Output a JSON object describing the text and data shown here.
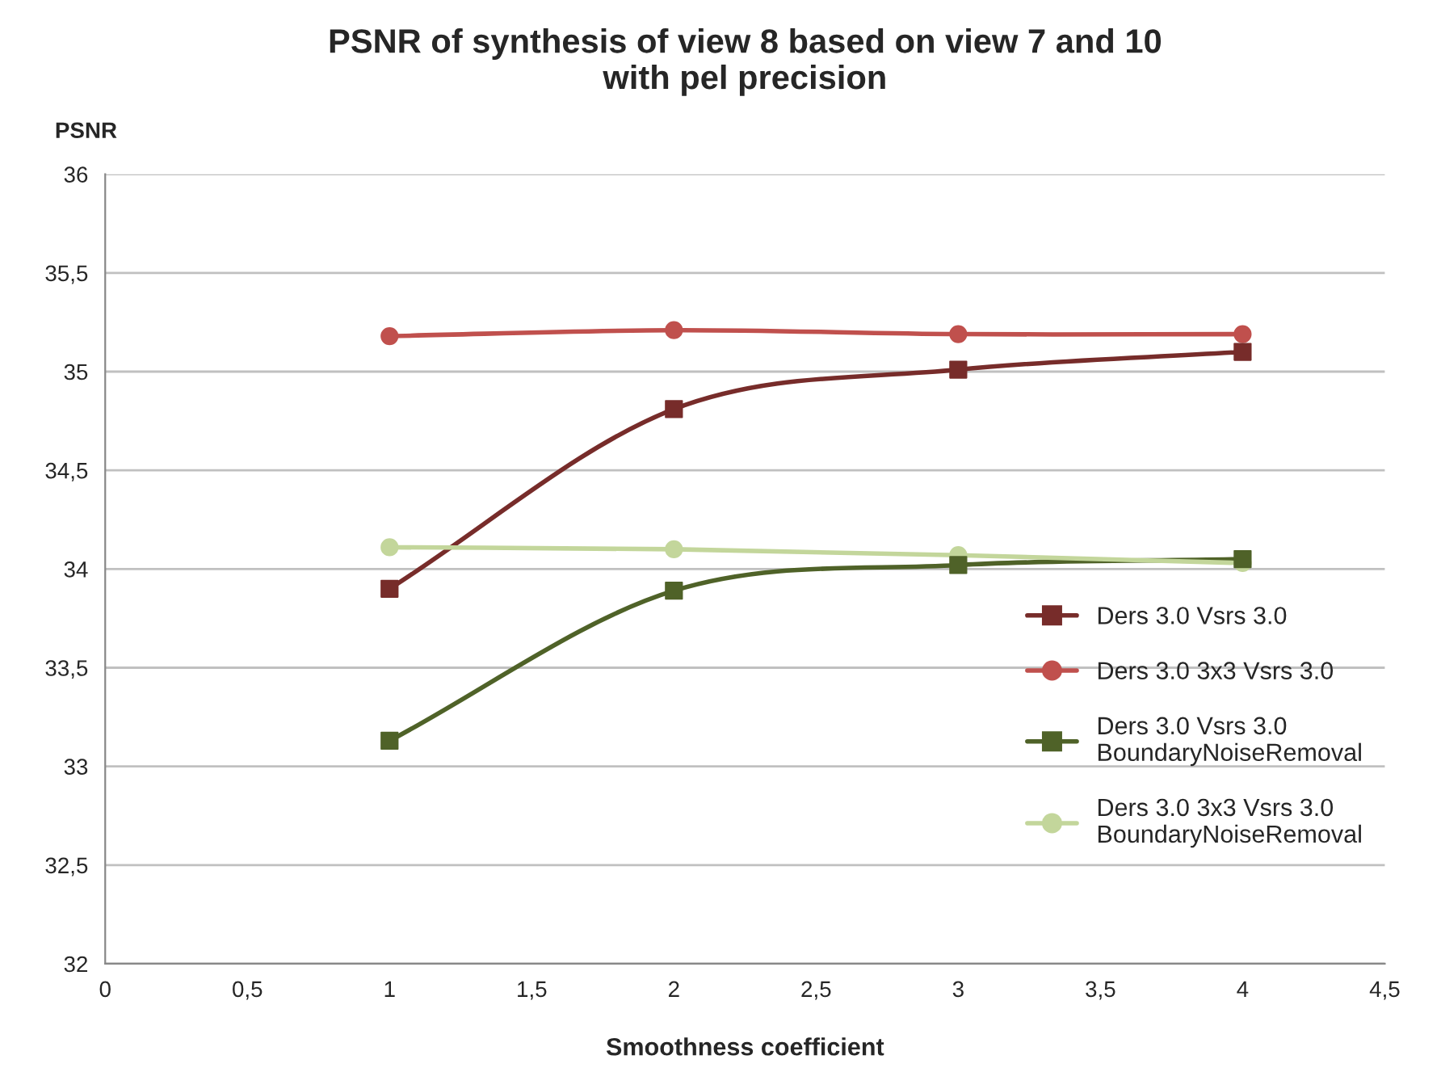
{
  "chart_data": {
    "type": "line",
    "title": "PSNR of synthesis of view 8 based on view 7 and 10\nwith pel precision",
    "xlabel": "Smoothness coefficient",
    "ylabel": "PSNR",
    "x": [
      1,
      2,
      3,
      4
    ],
    "series": [
      {
        "name": "Ders 3.0 Vsrs 3.0",
        "color": "#772c2a",
        "marker": "square",
        "values": [
          33.9,
          34.81,
          35.01,
          35.1
        ]
      },
      {
        "name": "Ders 3.0 3x3 Vsrs 3.0",
        "color": "#c0504d",
        "marker": "circle",
        "values": [
          35.18,
          35.21,
          35.19,
          35.19
        ]
      },
      {
        "name": "Ders 3.0 Vsrs 3.0\nBoundaryNoiseRemoval",
        "color": "#4f6228",
        "marker": "square",
        "values": [
          33.13,
          33.89,
          34.02,
          34.05
        ]
      },
      {
        "name": "Ders 3.0 3x3 Vsrs 3.0\nBoundaryNoiseRemoval",
        "color": "#c3d69b",
        "marker": "circle",
        "values": [
          34.11,
          34.1,
          34.07,
          34.03
        ]
      }
    ],
    "xlim": [
      0,
      4.5
    ],
    "xticks": [
      0,
      {
        "value": 0.5,
        "label": "0,5"
      },
      1,
      {
        "value": 1.5,
        "label": "1,5"
      },
      2,
      {
        "value": 2.5,
        "label": "2,5"
      },
      3,
      {
        "value": 3.5,
        "label": "3,5"
      },
      4,
      {
        "value": 4.5,
        "label": "4,5"
      }
    ],
    "ylim": [
      32,
      36
    ],
    "yticks": [
      32,
      {
        "value": 32.5,
        "label": "32,5"
      },
      33,
      {
        "value": 33.5,
        "label": "33,5"
      },
      34,
      {
        "value": 34.5,
        "label": "34,5"
      },
      35,
      {
        "value": 35.5,
        "label": "35,5"
      },
      36
    ],
    "grid": "y",
    "legend": "right",
    "line_style": "solid"
  }
}
